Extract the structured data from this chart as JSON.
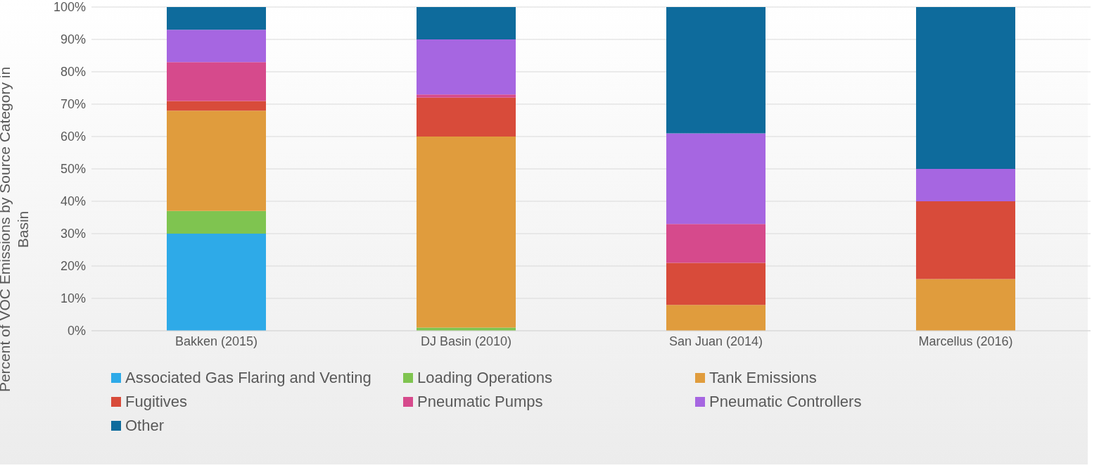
{
  "chart_data": {
    "type": "bar",
    "stacked": true,
    "ylabel": "Percent of VOC Emissions by Source Category in Basin",
    "categories": [
      "Bakken (2015)",
      "DJ Basin (2010)",
      "San Juan (2014)",
      "Marcellus (2016)"
    ],
    "series": [
      {
        "name": "Associated Gas Flaring and Venting",
        "color": "#2eaae8",
        "values": [
          30,
          0,
          0,
          0
        ]
      },
      {
        "name": "Loading Operations",
        "color": "#7fc450",
        "values": [
          7,
          1,
          0,
          0
        ]
      },
      {
        "name": "Tank Emissions",
        "color": "#e09c3d",
        "values": [
          31,
          59,
          8,
          16
        ]
      },
      {
        "name": "Fugitives",
        "color": "#d84b3a",
        "values": [
          3,
          12,
          13,
          24
        ]
      },
      {
        "name": "Pneumatic Pumps",
        "color": "#d64a8c",
        "values": [
          12,
          1,
          12,
          0
        ]
      },
      {
        "name": "Pneumatic Controllers",
        "color": "#a666e1",
        "values": [
          10,
          17,
          28,
          10
        ]
      },
      {
        "name": "Other",
        "color": "#0e6b9c",
        "values": [
          7,
          10,
          39,
          50
        ]
      }
    ],
    "ylim": [
      0,
      100
    ],
    "yticks": [
      {
        "value": 0,
        "label": "0%"
      },
      {
        "value": 10,
        "label": "10%"
      },
      {
        "value": 20,
        "label": "20%"
      },
      {
        "value": 30,
        "label": "30%"
      },
      {
        "value": 40,
        "label": "40%"
      },
      {
        "value": 50,
        "label": "50%"
      },
      {
        "value": 60,
        "label": "60%"
      },
      {
        "value": 70,
        "label": "70%"
      },
      {
        "value": 80,
        "label": "80%"
      },
      {
        "value": 90,
        "label": "90%"
      },
      {
        "value": 100,
        "label": "100%"
      }
    ],
    "grid": "y",
    "legend": "bottom"
  }
}
